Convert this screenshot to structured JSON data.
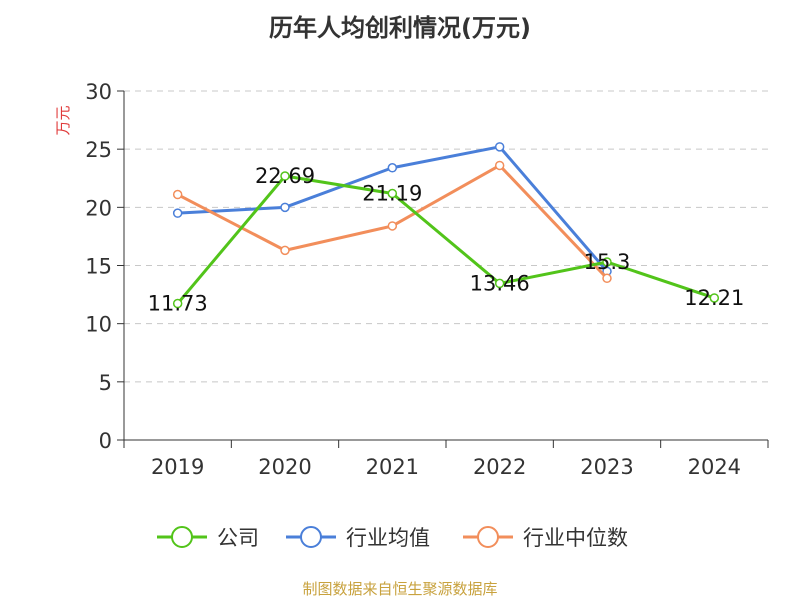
{
  "chart_data": {
    "type": "line",
    "title": "历年人均创利情况(万元)",
    "ylabel": "万元",
    "xlabel": "",
    "categories": [
      "2019",
      "2020",
      "2021",
      "2022",
      "2023",
      "2024"
    ],
    "ylim": [
      0,
      30
    ],
    "yticks": [
      0,
      5,
      10,
      15,
      20,
      25,
      30
    ],
    "grid": true,
    "legend_position": "bottom",
    "series": [
      {
        "name": "公司",
        "color": "#52c41a",
        "values": [
          11.73,
          22.69,
          21.19,
          13.46,
          15.3,
          12.21
        ],
        "labels": [
          "11.73",
          "22.69",
          "21.19",
          "13.46",
          "15.3",
          "12.21"
        ]
      },
      {
        "name": "行业均值",
        "color": "#4a7fd9",
        "values": [
          19.5,
          20.0,
          23.4,
          25.2,
          14.5,
          null
        ]
      },
      {
        "name": "行业中位数",
        "color": "#f28e5b",
        "values": [
          21.1,
          16.3,
          18.4,
          23.6,
          13.9,
          null
        ]
      }
    ]
  },
  "source_text": "制图数据来自恒生聚源数据库"
}
